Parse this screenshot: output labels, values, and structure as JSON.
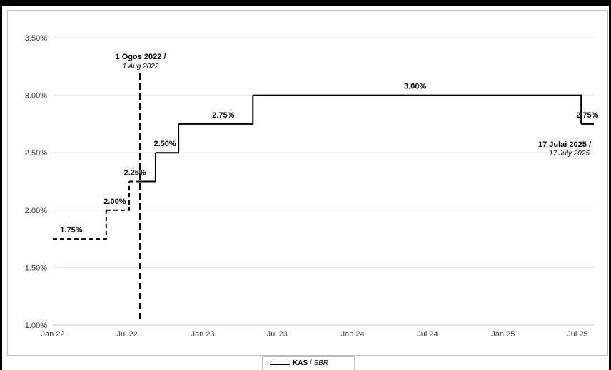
{
  "chart_data": {
    "type": "line",
    "step": true,
    "y_ticks": [
      "1.00%",
      "1.50%",
      "2.00%",
      "2.50%",
      "3.00%",
      "3.50%"
    ],
    "y_tick_values": [
      1.0,
      1.5,
      2.0,
      2.5,
      3.0,
      3.5
    ],
    "x_ticks": [
      "Jan 22",
      "Jul 22",
      "Jan 23",
      "Jul 23",
      "Jan 24",
      "Jul 24",
      "Jan 25",
      "Jul 25"
    ],
    "x_tick_values": [
      "2022-01-01",
      "2022-07-01",
      "2023-01-01",
      "2023-07-01",
      "2024-01-01",
      "2024-07-01",
      "2025-01-01",
      "2025-07-01"
    ],
    "xlim": [
      "2022-01-01",
      "2025-08-10"
    ],
    "ylim": [
      1.0,
      3.5
    ],
    "grid": "horizontal",
    "series": [
      {
        "name": "KAS / SBR",
        "color": "#000000",
        "points": [
          {
            "date": "2022-01-01",
            "value": 1.75,
            "style": "dashed"
          },
          {
            "date": "2022-05-11",
            "value": 2.0,
            "style": "dashed"
          },
          {
            "date": "2022-07-06",
            "value": 2.25,
            "style": "dashed"
          },
          {
            "date": "2022-08-01",
            "value": 2.25,
            "style": "solid"
          },
          {
            "date": "2022-09-08",
            "value": 2.5,
            "style": "solid"
          },
          {
            "date": "2022-11-03",
            "value": 2.75,
            "style": "solid"
          },
          {
            "date": "2023-05-03",
            "value": 3.0,
            "style": "solid"
          },
          {
            "date": "2025-07-10",
            "value": 2.75,
            "style": "solid"
          },
          {
            "date": "2025-08-10",
            "value": 2.75,
            "style": "solid"
          }
        ]
      }
    ],
    "data_labels": [
      {
        "text": "1.75%",
        "date": "2022-02-15",
        "value": 1.75
      },
      {
        "text": "2.00%",
        "date": "2022-06-01",
        "value": 2.0
      },
      {
        "text": "2.25%",
        "date": "2022-07-20",
        "value": 2.25
      },
      {
        "text": "2.50%",
        "date": "2022-10-01",
        "value": 2.5
      },
      {
        "text": "2.75%",
        "date": "2023-02-20",
        "value": 2.75
      },
      {
        "text": "3.00%",
        "date": "2024-06-01",
        "value": 3.0
      },
      {
        "text": "2.75%",
        "date": "2025-07-25",
        "value": 2.75
      }
    ],
    "annotations": [
      {
        "date": "2022-08-01",
        "text": "1 Ogos 2022 /",
        "subtext": "1 Aug 2022",
        "vline": true
      },
      {
        "date": "2025-07-17",
        "text": "17 Julai 2025 /",
        "subtext": "17 July 2025",
        "vline": false
      }
    ],
    "legend": {
      "position": "bottom-center",
      "label_bold": "KAS",
      "label_sep": " / ",
      "label_italic": "SBR"
    }
  }
}
